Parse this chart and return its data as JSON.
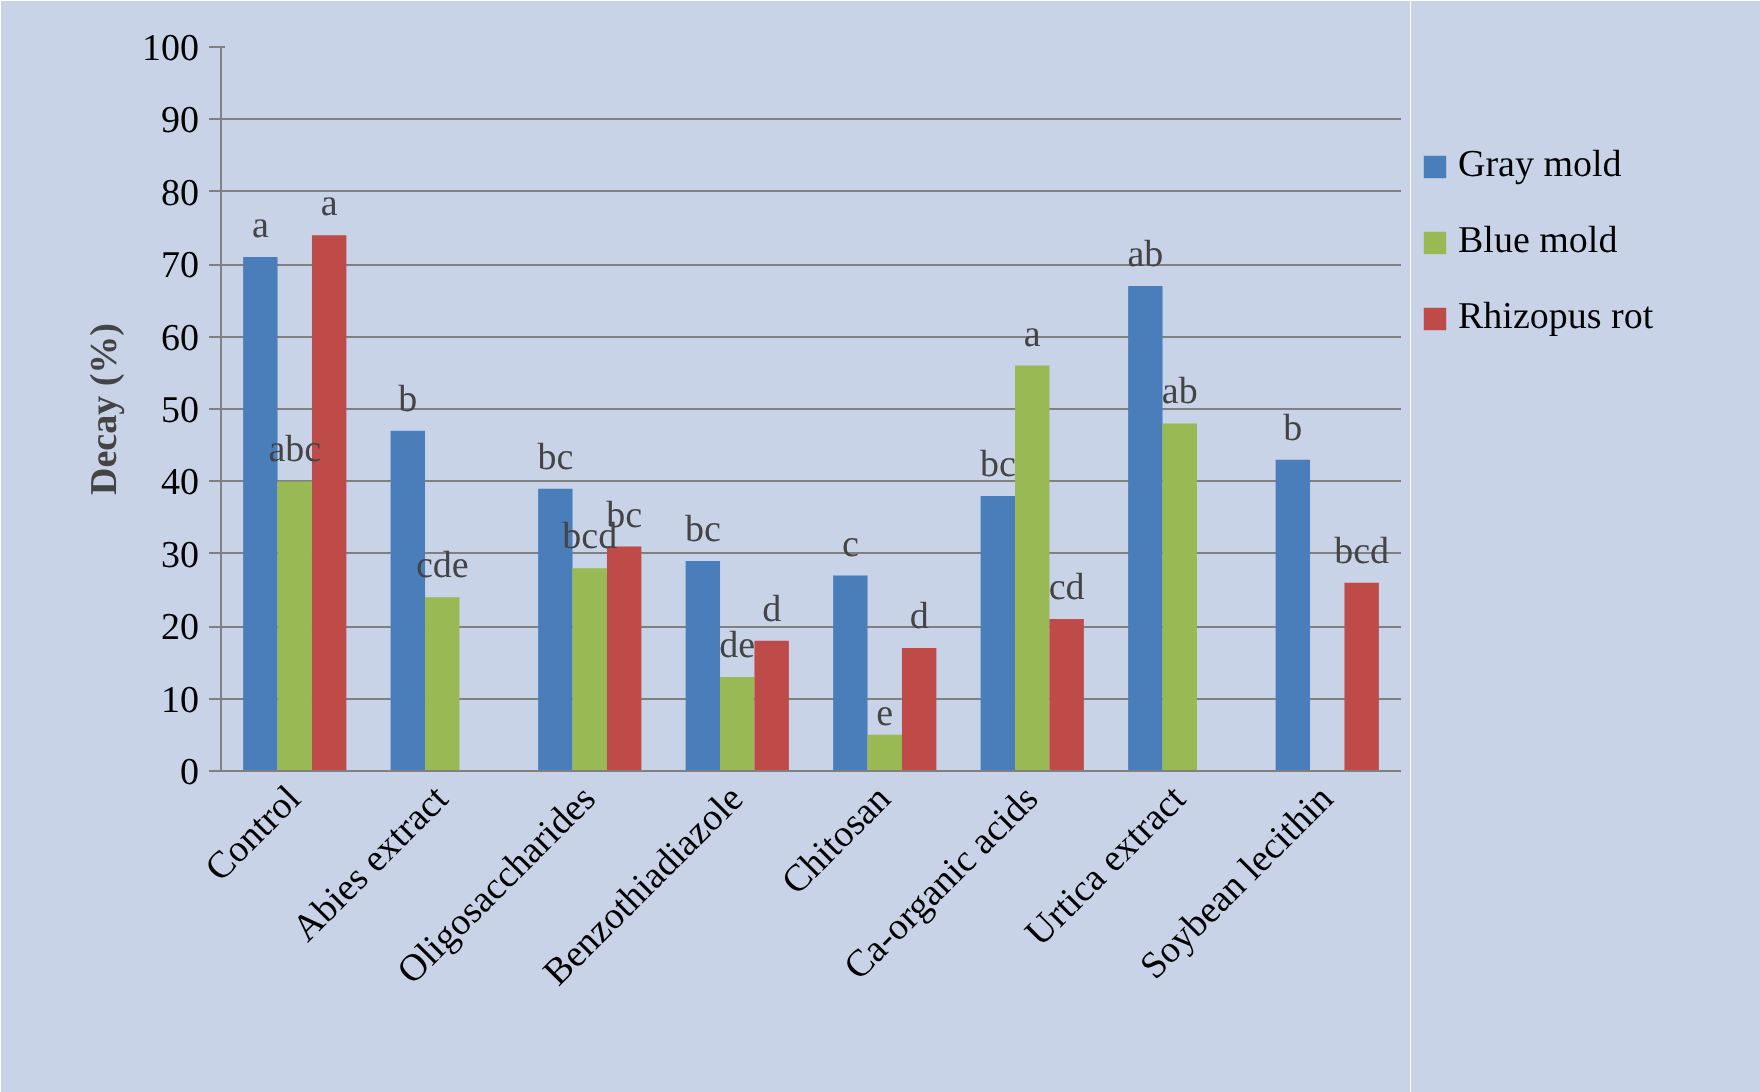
{
  "chart_data": {
    "type": "bar",
    "ylabel": "Decay (%)",
    "categories": [
      "Control",
      "Abies extract",
      "Oligosaccharides",
      "Benzothiadiazole",
      "Chitosan",
      "Ca-organic acids",
      "Urtica extract",
      "Soybean lecithin"
    ],
    "series": [
      {
        "name": "Gray mold",
        "color": "#4a7ebb",
        "values": [
          71,
          47,
          39,
          29,
          27,
          38,
          67,
          43
        ],
        "value_labels": [
          "a",
          "b",
          "bc",
          "bc",
          "c",
          "bc",
          "ab",
          "b"
        ]
      },
      {
        "name": "Blue mold",
        "color": "#98b954",
        "values": [
          40,
          24,
          28,
          13,
          5,
          56,
          48,
          null
        ],
        "value_labels": [
          "abc",
          "cde",
          "bcd",
          "de",
          "e",
          "a",
          "ab",
          null
        ]
      },
      {
        "name": "Rhizopus rot",
        "color": "#be4b48",
        "values": [
          74,
          null,
          31,
          18,
          17,
          21,
          null,
          26
        ],
        "value_labels": [
          "a",
          null,
          "bc",
          "d",
          "d",
          "cd",
          null,
          "bcd"
        ]
      }
    ],
    "ylim": [
      0,
      100
    ],
    "yticks": [
      0,
      10,
      20,
      30,
      40,
      50,
      60,
      70,
      80,
      90,
      100
    ],
    "grid": "y",
    "legend": "right"
  }
}
